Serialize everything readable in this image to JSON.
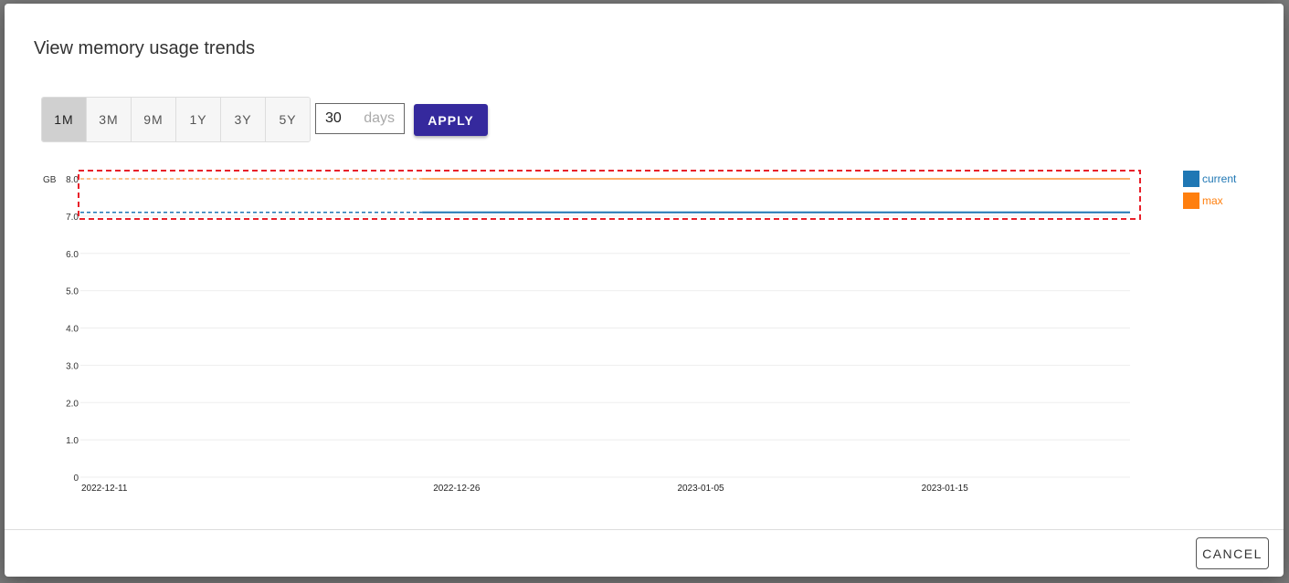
{
  "dialog": {
    "title": "View memory usage trends",
    "ranges": [
      "1M",
      "3M",
      "9M",
      "1Y",
      "3Y",
      "5Y"
    ],
    "active_range": "1M",
    "days_value": "30",
    "days_unit": "days",
    "apply_label": "APPLY",
    "cancel_label": "CANCEL"
  },
  "chart_data": {
    "type": "line",
    "ylabel": "GB",
    "ylim": [
      0,
      8
    ],
    "yticks": [
      "0",
      "1.0",
      "2.0",
      "3.0",
      "4.0",
      "5.0",
      "6.0",
      "7.0",
      "8.0"
    ],
    "xlim": [
      "2022-12-11",
      "2023-01-23"
    ],
    "xticks": [
      "2022-12-11",
      "2022-12-26",
      "2023-01-05",
      "2023-01-15"
    ],
    "grid": true,
    "legend_position": "right",
    "series": [
      {
        "name": "current",
        "color": "#1f77b4",
        "x": [
          "2022-12-25",
          "2022-12-28",
          "2023-01-20",
          "2023-01-23"
        ],
        "values": [
          7.1,
          7.1,
          7.1,
          7.1
        ]
      },
      {
        "name": "max",
        "color": "#ff7f0e",
        "x": [
          "2022-12-25",
          "2023-01-23"
        ],
        "values": [
          8.0,
          8.0
        ]
      }
    ],
    "highlight_color": "#e8202a"
  }
}
